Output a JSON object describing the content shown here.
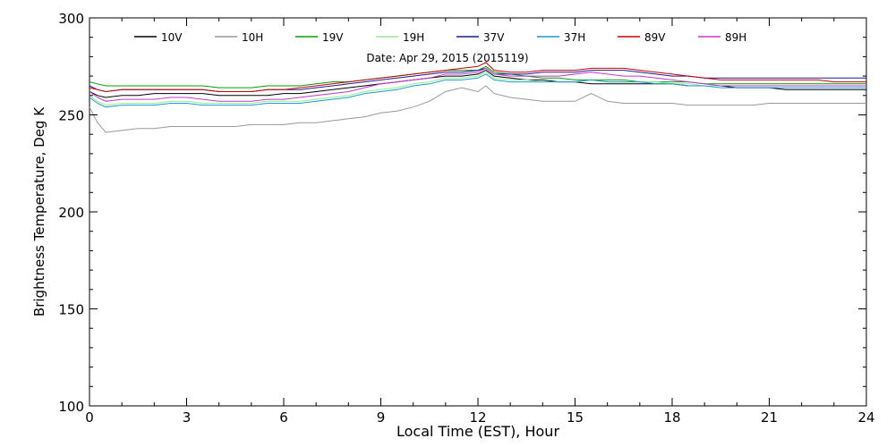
{
  "chart_data": {
    "type": "line",
    "title": "Date: Apr 29, 2015 (2015119)",
    "xlabel": "Local Time (EST), Hour",
    "ylabel": "Brightness Temperature, Deg K",
    "xlim": [
      0,
      24
    ],
    "ylim": [
      100,
      300
    ],
    "xticks": [
      0,
      3,
      6,
      9,
      12,
      15,
      18,
      21,
      24
    ],
    "yticks": [
      100,
      150,
      200,
      250,
      300
    ],
    "grid": false,
    "legend_position": "top",
    "x": [
      0,
      0.25,
      0.5,
      1,
      1.5,
      2,
      2.5,
      3,
      3.5,
      4,
      4.5,
      5,
      5.5,
      6,
      6.5,
      7,
      7.5,
      8,
      8.5,
      9,
      9.5,
      10,
      10.5,
      11,
      11.5,
      12,
      12.25,
      12.5,
      13,
      13.5,
      14,
      14.5,
      15,
      15.5,
      16,
      16.5,
      17,
      17.5,
      18,
      18.5,
      19,
      19.5,
      20,
      20.5,
      21,
      21.5,
      22,
      22.5,
      23,
      23.5,
      24
    ],
    "series": [
      {
        "name": "10V",
        "color": "#000000",
        "values": [
          262,
          260,
          259,
          260,
          260,
          261,
          261,
          261,
          261,
          260,
          260,
          260,
          260,
          261,
          261,
          262,
          263,
          264,
          265,
          266,
          267,
          268,
          269,
          270,
          270,
          271,
          273,
          270,
          269,
          268,
          268,
          267,
          267,
          266,
          266,
          266,
          266,
          266,
          266,
          265,
          265,
          265,
          264,
          264,
          264,
          263,
          263,
          263,
          263,
          263,
          263
        ]
      },
      {
        "name": "10H",
        "color": "#999999",
        "values": [
          254,
          246,
          241,
          242,
          243,
          243,
          244,
          244,
          244,
          244,
          244,
          245,
          245,
          245,
          246,
          246,
          247,
          248,
          249,
          251,
          252,
          254,
          257,
          262,
          264,
          262,
          265,
          261,
          259,
          258,
          257,
          257,
          257,
          261,
          257,
          256,
          256,
          256,
          256,
          255,
          255,
          255,
          255,
          255,
          256,
          256,
          256,
          256,
          256,
          256,
          256
        ]
      },
      {
        "name": "19V",
        "color": "#00a000",
        "values": [
          267,
          266,
          265,
          265,
          265,
          265,
          265,
          265,
          265,
          264,
          264,
          264,
          265,
          265,
          265,
          266,
          267,
          267,
          268,
          269,
          270,
          271,
          272,
          273,
          273,
          273,
          275,
          272,
          271,
          270,
          269,
          269,
          268,
          268,
          268,
          268,
          267,
          267,
          267,
          267,
          266,
          266,
          266,
          266,
          266,
          266,
          266,
          266,
          266,
          266,
          266
        ]
      },
      {
        "name": "19H",
        "color": "#90ee90",
        "values": [
          260,
          257,
          255,
          256,
          256,
          256,
          257,
          257,
          256,
          256,
          256,
          256,
          257,
          257,
          257,
          258,
          259,
          260,
          262,
          263,
          264,
          266,
          267,
          269,
          269,
          270,
          272,
          269,
          268,
          268,
          267,
          267,
          267,
          268,
          267,
          267,
          267,
          267,
          266,
          266,
          265,
          265,
          265,
          265,
          265,
          265,
          265,
          265,
          265,
          265,
          265
        ]
      },
      {
        "name": "37V",
        "color": "#1a1aa0",
        "values": [
          265,
          263,
          262,
          263,
          263,
          263,
          263,
          263,
          263,
          262,
          262,
          262,
          263,
          263,
          263,
          264,
          265,
          266,
          267,
          268,
          269,
          270,
          271,
          272,
          272,
          273,
          274,
          271,
          271,
          271,
          272,
          272,
          272,
          273,
          273,
          273,
          272,
          271,
          270,
          270,
          269,
          269,
          269,
          269,
          269,
          269,
          269,
          269,
          269,
          269,
          269
        ]
      },
      {
        "name": "37H",
        "color": "#1a9ad0",
        "values": [
          259,
          256,
          254,
          255,
          255,
          255,
          256,
          256,
          255,
          255,
          255,
          255,
          256,
          256,
          256,
          257,
          258,
          259,
          261,
          262,
          263,
          265,
          266,
          268,
          268,
          269,
          271,
          268,
          267,
          267,
          267,
          267,
          267,
          268,
          267,
          267,
          267,
          266,
          266,
          265,
          265,
          264,
          264,
          264,
          264,
          264,
          264,
          264,
          264,
          264,
          264
        ]
      },
      {
        "name": "89V",
        "color": "#cc0000",
        "values": [
          264,
          263,
          262,
          263,
          263,
          263,
          263,
          263,
          263,
          262,
          262,
          262,
          263,
          263,
          264,
          265,
          266,
          267,
          268,
          269,
          270,
          271,
          272,
          273,
          274,
          275,
          277,
          273,
          272,
          272,
          273,
          273,
          273,
          274,
          274,
          274,
          273,
          272,
          271,
          270,
          269,
          268,
          268,
          268,
          268,
          268,
          268,
          268,
          267,
          267,
          267
        ]
      },
      {
        "name": "89H",
        "color": "#cc33cc",
        "values": [
          262,
          259,
          257,
          258,
          258,
          258,
          259,
          259,
          258,
          257,
          257,
          257,
          258,
          258,
          259,
          260,
          261,
          262,
          264,
          266,
          267,
          268,
          269,
          271,
          271,
          272,
          274,
          271,
          270,
          270,
          270,
          270,
          271,
          272,
          271,
          270,
          270,
          269,
          268,
          267,
          266,
          265,
          265,
          265,
          265,
          265,
          265,
          265,
          265,
          265,
          265
        ]
      }
    ]
  }
}
